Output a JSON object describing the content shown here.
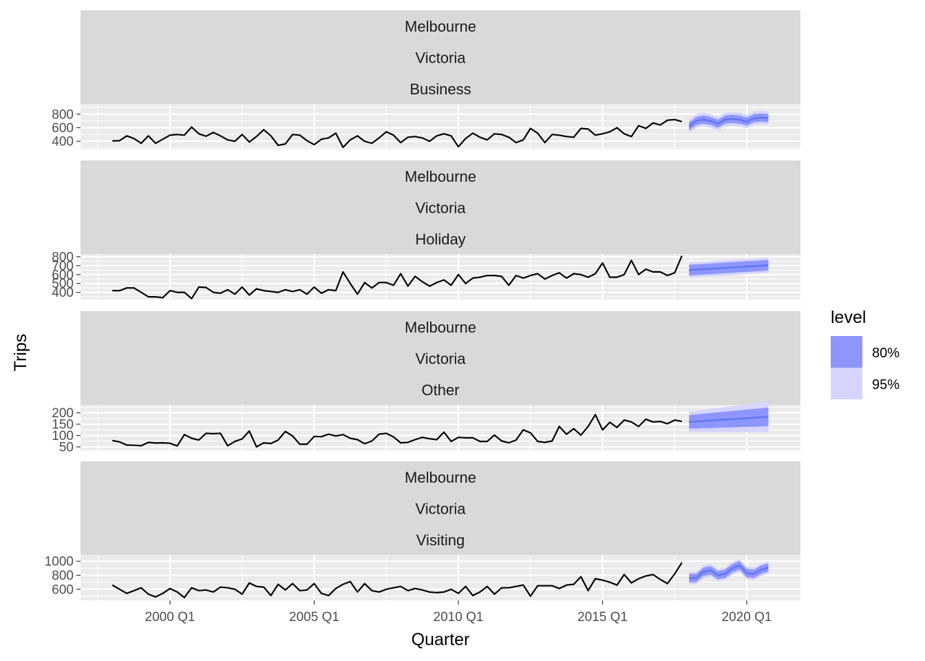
{
  "chart_data": {
    "type": "line",
    "xlabel": "Quarter",
    "ylabel": "Trips",
    "x_tick_labels": [
      "2000 Q1",
      "2005 Q1",
      "2010 Q1",
      "2015 Q1",
      "2020 Q1"
    ],
    "history_start": "1998 Q1",
    "history_end": "2017 Q4",
    "forecast_start": "2018 Q1",
    "forecast_end": "2020 Q4",
    "legend": {
      "title": "level",
      "position": "right",
      "entries": [
        {
          "label": "80%",
          "color": "#8f95ff"
        },
        {
          "label": "95%",
          "color": "#d5d5ff"
        }
      ]
    },
    "colors": {
      "history_line": "#000000",
      "forecast_line": "#5e75f0",
      "band_80": "#8f95ff",
      "band_95": "#d5d5ff",
      "panel_bg": "#ebebeb",
      "strip_bg": "#d9d9d9",
      "grid": "#ffffff"
    },
    "panels": [
      {
        "strip": [
          "Melbourne",
          "Victoria",
          "Business"
        ],
        "yticks": [
          "400",
          "600",
          "800"
        ],
        "ylim": [
          280,
          950
        ],
        "history": [
          405,
          408,
          480,
          440,
          370,
          480,
          370,
          430,
          490,
          500,
          490,
          610,
          510,
          475,
          530,
          480,
          420,
          400,
          500,
          390,
          470,
          570,
          480,
          340,
          360,
          500,
          490,
          410,
          350,
          430,
          450,
          520,
          310,
          420,
          480,
          400,
          370,
          450,
          540,
          490,
          380,
          460,
          470,
          450,
          400,
          480,
          510,
          480,
          320,
          440,
          520,
          460,
          420,
          510,
          500,
          460,
          380,
          420,
          590,
          520,
          380,
          500,
          490,
          470,
          460,
          590,
          580,
          490,
          510,
          540,
          600,
          510,
          470,
          630,
          590,
          670,
          640,
          710,
          720,
          690
        ],
        "forecast": {
          "mean": [
            620,
            700,
            720,
            700,
            660,
            720,
            730,
            720,
            690,
            740,
            750,
            740
          ],
          "lo80": [
            560,
            640,
            660,
            640,
            600,
            660,
            670,
            660,
            630,
            680,
            690,
            680
          ],
          "hi80": [
            680,
            760,
            780,
            760,
            720,
            780,
            790,
            780,
            750,
            800,
            810,
            800
          ],
          "lo95": [
            520,
            600,
            620,
            600,
            560,
            620,
            630,
            620,
            590,
            640,
            650,
            640
          ],
          "hi95": [
            720,
            800,
            820,
            800,
            760,
            820,
            830,
            820,
            790,
            840,
            850,
            840
          ]
        }
      },
      {
        "strip": [
          "Melbourne",
          "Victoria",
          "Holiday"
        ],
        "yticks": [
          "400",
          "500",
          "600",
          "700",
          "800"
        ],
        "ylim": [
          320,
          830
        ],
        "history": [
          420,
          420,
          450,
          450,
          400,
          350,
          350,
          340,
          420,
          400,
          400,
          330,
          460,
          455,
          400,
          390,
          430,
          380,
          460,
          370,
          440,
          420,
          410,
          400,
          430,
          410,
          430,
          380,
          460,
          390,
          430,
          420,
          630,
          500,
          380,
          510,
          450,
          510,
          510,
          480,
          610,
          470,
          580,
          520,
          470,
          510,
          540,
          480,
          600,
          500,
          560,
          570,
          590,
          590,
          580,
          480,
          590,
          560,
          590,
          610,
          550,
          590,
          620,
          560,
          610,
          600,
          570,
          610,
          730,
          570,
          570,
          600,
          760,
          600,
          660,
          630,
          630,
          590,
          620,
          810
        ],
        "forecast": {
          "mean": [
            650,
            655,
            660,
            665,
            670,
            675,
            680,
            685,
            690,
            695,
            700,
            705
          ],
          "lo80": [
            590,
            595,
            600,
            605,
            610,
            615,
            620,
            625,
            630,
            635,
            640,
            645
          ],
          "hi80": [
            710,
            715,
            720,
            725,
            730,
            735,
            740,
            745,
            750,
            755,
            760,
            765
          ],
          "lo95": [
            565,
            570,
            575,
            580,
            585,
            590,
            595,
            600,
            605,
            610,
            615,
            620
          ],
          "hi95": [
            735,
            740,
            745,
            750,
            755,
            760,
            765,
            770,
            775,
            780,
            785,
            790
          ]
        }
      },
      {
        "strip": [
          "Melbourne",
          "Victoria",
          "Other"
        ],
        "yticks": [
          "50",
          "100",
          "150",
          "200"
        ],
        "ylim": [
          35,
          235
        ],
        "history": [
          78,
          72,
          58,
          57,
          55,
          70,
          67,
          68,
          66,
          54,
          104,
          88,
          80,
          110,
          108,
          110,
          55,
          74,
          85,
          120,
          50,
          68,
          65,
          80,
          118,
          98,
          62,
          62,
          96,
          95,
          106,
          98,
          104,
          88,
          82,
          64,
          76,
          106,
          110,
          94,
          68,
          70,
          82,
          92,
          86,
          82,
          115,
          74,
          92,
          90,
          90,
          74,
          74,
          102,
          76,
          68,
          80,
          125,
          112,
          74,
          70,
          76,
          140,
          106,
          130,
          102,
          140,
          192,
          125,
          158,
          136,
          168,
          160,
          140,
          172,
          160,
          162,
          152,
          168,
          162
        ],
        "forecast": {
          "mean": [
            160,
            162,
            164,
            166,
            168,
            170,
            172,
            174,
            176,
            178,
            180,
            182
          ],
          "lo80": [
            130,
            131,
            132,
            133,
            134,
            135,
            136,
            137,
            138,
            139,
            140,
            141
          ],
          "hi80": [
            190,
            193,
            196,
            199,
            202,
            205,
            208,
            211,
            214,
            217,
            220,
            223
          ],
          "lo95": [
            115,
            115,
            115,
            115,
            115,
            115,
            115,
            115,
            115,
            115,
            115,
            115
          ],
          "hi95": [
            205,
            209,
            213,
            217,
            221,
            225,
            229,
            233,
            237,
            241,
            245,
            249
          ]
        }
      },
      {
        "strip": [
          "Melbourne",
          "Victoria",
          "Visiting"
        ],
        "yticks": [
          "600",
          "800",
          "1000"
        ],
        "ylim": [
          440,
          1090
        ],
        "history": [
          660,
          600,
          540,
          580,
          620,
          530,
          490,
          540,
          610,
          560,
          480,
          620,
          580,
          590,
          560,
          630,
          620,
          600,
          530,
          690,
          640,
          630,
          510,
          670,
          590,
          680,
          580,
          590,
          680,
          540,
          510,
          610,
          670,
          710,
          560,
          680,
          580,
          560,
          600,
          620,
          640,
          580,
          610,
          590,
          560,
          550,
          560,
          600,
          540,
          640,
          510,
          560,
          640,
          530,
          620,
          620,
          640,
          660,
          500,
          650,
          650,
          650,
          610,
          660,
          670,
          780,
          580,
          750,
          730,
          700,
          660,
          810,
          690,
          750,
          790,
          810,
          740,
          680,
          820,
          980
        ],
        "forecast": {
          "mean": [
            760,
            760,
            850,
            870,
            800,
            820,
            900,
            940,
            830,
            820,
            880,
            910
          ],
          "lo80": [
            700,
            700,
            790,
            810,
            740,
            760,
            840,
            880,
            770,
            760,
            820,
            850
          ],
          "hi80": [
            820,
            820,
            910,
            930,
            860,
            880,
            960,
            1000,
            890,
            880,
            940,
            970
          ],
          "lo95": [
            670,
            670,
            760,
            780,
            710,
            730,
            810,
            850,
            740,
            730,
            790,
            820
          ],
          "hi95": [
            850,
            850,
            940,
            960,
            890,
            910,
            990,
            1030,
            920,
            910,
            970,
            1000
          ]
        }
      }
    ]
  }
}
